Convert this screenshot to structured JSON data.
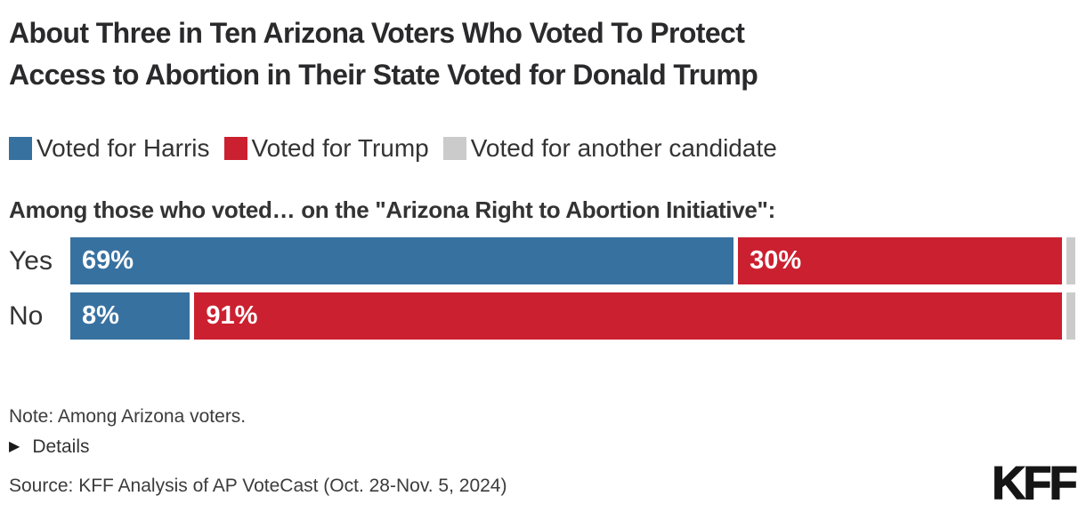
{
  "title": {
    "line1": "About Three in Ten Arizona Voters Who Voted To Protect",
    "line2": "Access to Abortion in Their State Voted for Donald Trump"
  },
  "legend": [
    {
      "label": "Voted for Harris",
      "color": "#3771A0",
      "icon": "blue-square-swatch"
    },
    {
      "label": "Voted for Trump",
      "color": "#CB2030",
      "icon": "red-square-swatch"
    },
    {
      "label": "Voted for another candidate",
      "color": "#CBCBCB",
      "icon": "gray-square-swatch"
    }
  ],
  "subtitle": "Among those who voted… on the \"Arizona Right to Abortion Initiative\":",
  "chart_data": {
    "type": "bar",
    "orientation": "horizontal-stacked",
    "categories": [
      "Yes",
      "No"
    ],
    "series": [
      {
        "name": "Voted for Harris",
        "color": "#3771A0",
        "values": [
          69,
          8
        ]
      },
      {
        "name": "Voted for Trump",
        "color": "#CB2030",
        "values": [
          30,
          91
        ]
      },
      {
        "name": "Voted for another candidate",
        "color": "#CBCBCB",
        "values": [
          1,
          1
        ]
      }
    ],
    "value_labels": [
      [
        "69%",
        "30%",
        ""
      ],
      [
        "8%",
        "91%",
        ""
      ]
    ],
    "xlim": [
      0,
      100
    ],
    "grid": false,
    "legend_position": "top"
  },
  "note": "Note: Among Arizona voters.",
  "details": {
    "icon": "triangle-right-icon",
    "glyph": "▶",
    "label": "Details"
  },
  "source": "Source: KFF Analysis of AP VoteCast (Oct. 28-Nov. 5, 2024)",
  "logo": "KFF"
}
